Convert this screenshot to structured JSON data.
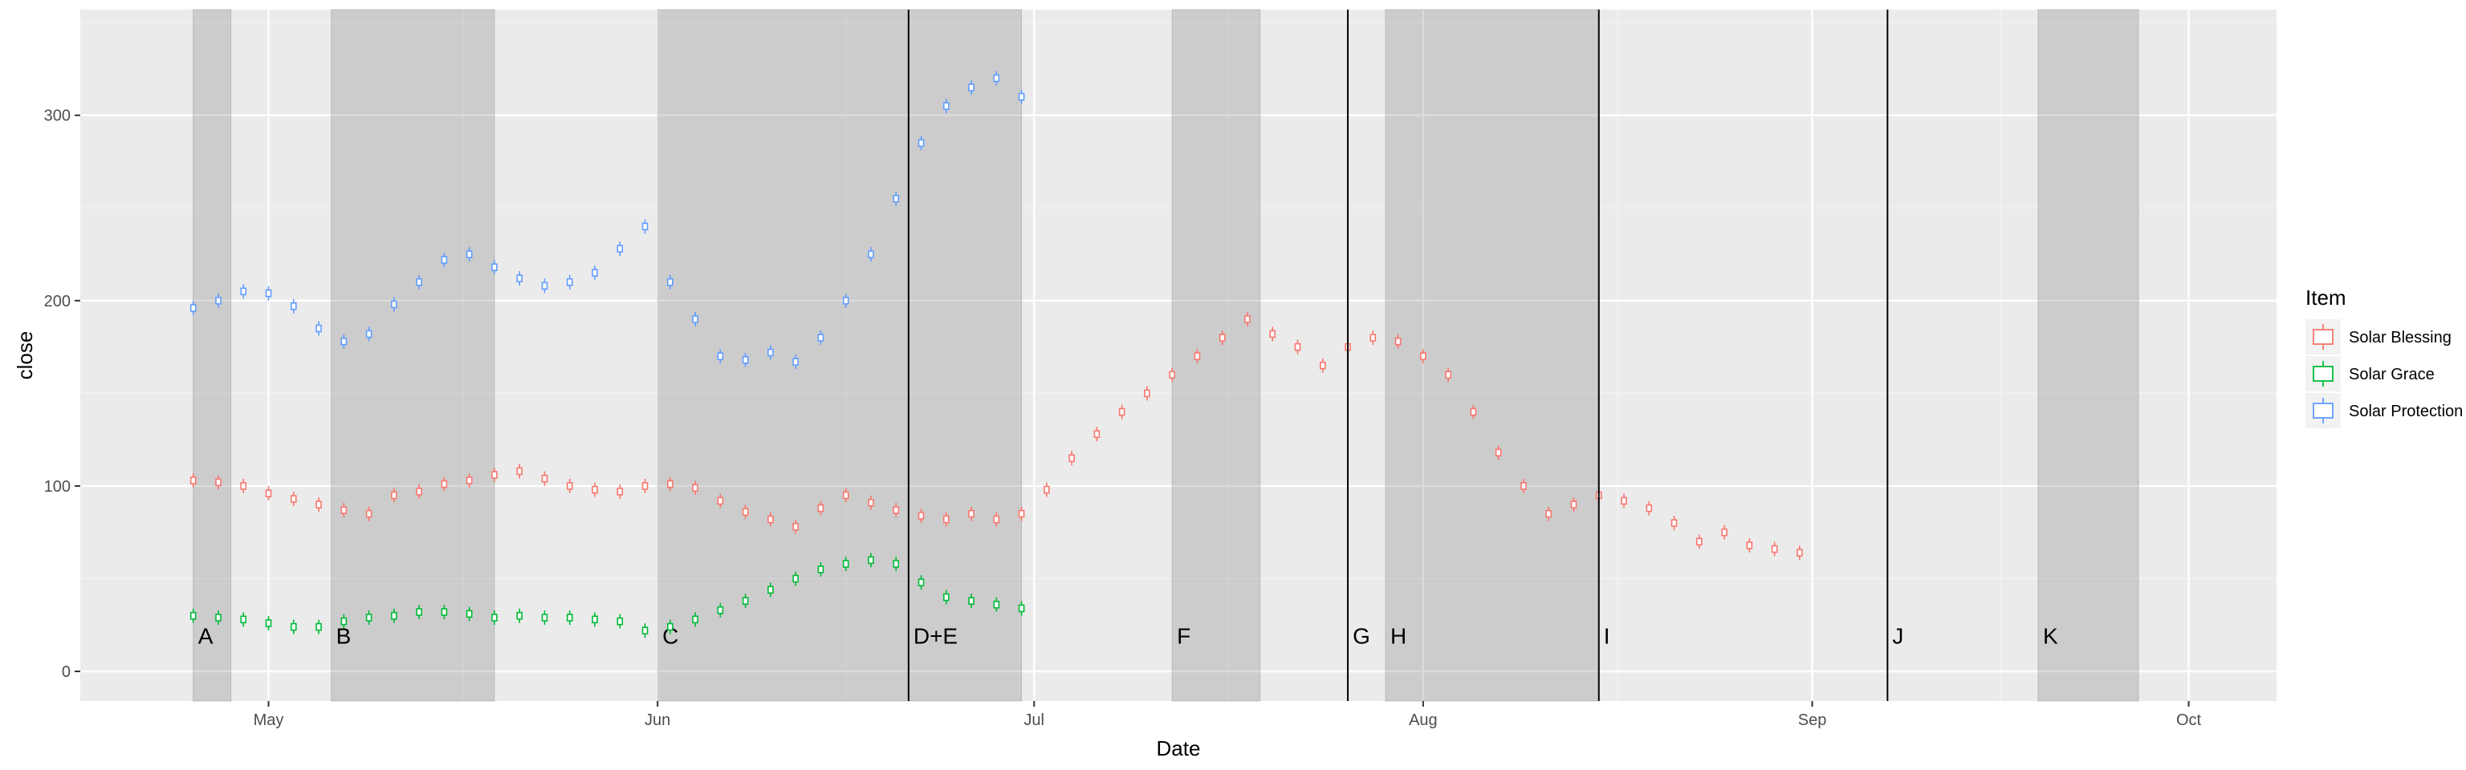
{
  "chart_data": {
    "type": "boxplot",
    "xlabel": "Date",
    "ylabel": "close",
    "x_type": "date",
    "xlim": [
      "2024-04-16",
      "2024-10-08"
    ],
    "ylim": [
      -16,
      357
    ],
    "x_ticks": [
      {
        "date": "2024-05-01",
        "label": "May"
      },
      {
        "date": "2024-06-01",
        "label": "Jun"
      },
      {
        "date": "2024-07-01",
        "label": "Jul"
      },
      {
        "date": "2024-08-01",
        "label": "Aug"
      },
      {
        "date": "2024-09-01",
        "label": "Sep"
      },
      {
        "date": "2024-10-01",
        "label": "Oct"
      }
    ],
    "y_ticks": [
      0,
      100,
      200,
      300
    ],
    "grid": true,
    "legend": {
      "title": "Item",
      "placement": "right",
      "entries": [
        "Solar Blessing",
        "Solar Grace",
        "Solar Protection"
      ]
    },
    "shaded_periods": [
      {
        "label": "A",
        "start": "2024-04-25",
        "end": "2024-04-28"
      },
      {
        "label": "B",
        "start": "2024-05-06",
        "end": "2024-05-19"
      },
      {
        "label": "C",
        "start": "2024-06-01",
        "end": "2024-06-30"
      },
      {
        "label": "F",
        "start": "2024-07-12",
        "end": "2024-07-19"
      },
      {
        "label": "H",
        "start": "2024-07-29",
        "end": "2024-08-15"
      },
      {
        "label": "K",
        "start": "2024-09-19",
        "end": "2024-09-27"
      }
    ],
    "event_lines": [
      {
        "label": "D+E",
        "date": "2024-06-21"
      },
      {
        "label": "G",
        "date": "2024-07-26"
      },
      {
        "label": "I",
        "date": "2024-08-15"
      },
      {
        "label": "J",
        "date": "2024-09-07"
      }
    ],
    "series": [
      {
        "name": "Solar Blessing",
        "color": "#F8766D",
        "points": [
          [
            "2024-04-25",
            103
          ],
          [
            "2024-04-27",
            102
          ],
          [
            "2024-04-29",
            100
          ],
          [
            "2024-05-01",
            96
          ],
          [
            "2024-05-03",
            93
          ],
          [
            "2024-05-05",
            90
          ],
          [
            "2024-05-07",
            87
          ],
          [
            "2024-05-09",
            85
          ],
          [
            "2024-05-11",
            95
          ],
          [
            "2024-05-13",
            97
          ],
          [
            "2024-05-15",
            101
          ],
          [
            "2024-05-17",
            103
          ],
          [
            "2024-05-19",
            106
          ],
          [
            "2024-05-21",
            108
          ],
          [
            "2024-05-23",
            104
          ],
          [
            "2024-05-25",
            100
          ],
          [
            "2024-05-27",
            98
          ],
          [
            "2024-05-29",
            97
          ],
          [
            "2024-05-31",
            100
          ],
          [
            "2024-06-02",
            101
          ],
          [
            "2024-06-04",
            99
          ],
          [
            "2024-06-06",
            92
          ],
          [
            "2024-06-08",
            86
          ],
          [
            "2024-06-10",
            82
          ],
          [
            "2024-06-12",
            78
          ],
          [
            "2024-06-14",
            88
          ],
          [
            "2024-06-16",
            95
          ],
          [
            "2024-06-18",
            91
          ],
          [
            "2024-06-20",
            87
          ],
          [
            "2024-06-22",
            84
          ],
          [
            "2024-06-24",
            82
          ],
          [
            "2024-06-26",
            85
          ],
          [
            "2024-06-28",
            82
          ],
          [
            "2024-06-30",
            85
          ],
          [
            "2024-07-02",
            98
          ],
          [
            "2024-07-04",
            115
          ],
          [
            "2024-07-06",
            128
          ],
          [
            "2024-07-08",
            140
          ],
          [
            "2024-07-10",
            150
          ],
          [
            "2024-07-12",
            160
          ],
          [
            "2024-07-14",
            170
          ],
          [
            "2024-07-16",
            180
          ],
          [
            "2024-07-18",
            190
          ],
          [
            "2024-07-20",
            182
          ],
          [
            "2024-07-22",
            175
          ],
          [
            "2024-07-24",
            165
          ],
          [
            "2024-07-26",
            175
          ],
          [
            "2024-07-28",
            180
          ],
          [
            "2024-07-30",
            178
          ],
          [
            "2024-08-01",
            170
          ],
          [
            "2024-08-03",
            160
          ],
          [
            "2024-08-05",
            140
          ],
          [
            "2024-08-07",
            118
          ],
          [
            "2024-08-09",
            100
          ],
          [
            "2024-08-11",
            85
          ],
          [
            "2024-08-13",
            90
          ],
          [
            "2024-08-15",
            95
          ],
          [
            "2024-08-17",
            92
          ],
          [
            "2024-08-19",
            88
          ],
          [
            "2024-08-21",
            80
          ],
          [
            "2024-08-23",
            70
          ],
          [
            "2024-08-25",
            75
          ],
          [
            "2024-08-27",
            68
          ],
          [
            "2024-08-29",
            66
          ],
          [
            "2024-08-31",
            64
          ]
        ]
      },
      {
        "name": "Solar Grace",
        "color": "#00BA38",
        "points": [
          [
            "2024-04-25",
            30
          ],
          [
            "2024-04-27",
            29
          ],
          [
            "2024-04-29",
            28
          ],
          [
            "2024-05-01",
            26
          ],
          [
            "2024-05-03",
            24
          ],
          [
            "2024-05-05",
            24
          ],
          [
            "2024-05-07",
            27
          ],
          [
            "2024-05-09",
            29
          ],
          [
            "2024-05-11",
            30
          ],
          [
            "2024-05-13",
            32
          ],
          [
            "2024-05-15",
            32
          ],
          [
            "2024-05-17",
            31
          ],
          [
            "2024-05-19",
            29
          ],
          [
            "2024-05-21",
            30
          ],
          [
            "2024-05-23",
            29
          ],
          [
            "2024-05-25",
            29
          ],
          [
            "2024-05-27",
            28
          ],
          [
            "2024-05-29",
            27
          ],
          [
            "2024-05-31",
            22
          ],
          [
            "2024-06-02",
            24
          ],
          [
            "2024-06-04",
            28
          ],
          [
            "2024-06-06",
            33
          ],
          [
            "2024-06-08",
            38
          ],
          [
            "2024-06-10",
            44
          ],
          [
            "2024-06-12",
            50
          ],
          [
            "2024-06-14",
            55
          ],
          [
            "2024-06-16",
            58
          ],
          [
            "2024-06-18",
            60
          ],
          [
            "2024-06-20",
            58
          ],
          [
            "2024-06-22",
            48
          ],
          [
            "2024-06-24",
            40
          ],
          [
            "2024-06-26",
            38
          ],
          [
            "2024-06-28",
            36
          ],
          [
            "2024-06-30",
            34
          ]
        ]
      },
      {
        "name": "Solar Protection",
        "color": "#619CFF",
        "points": [
          [
            "2024-04-25",
            196
          ],
          [
            "2024-04-27",
            200
          ],
          [
            "2024-04-29",
            205
          ],
          [
            "2024-05-01",
            204
          ],
          [
            "2024-05-03",
            197
          ],
          [
            "2024-05-05",
            185
          ],
          [
            "2024-05-07",
            178
          ],
          [
            "2024-05-09",
            182
          ],
          [
            "2024-05-11",
            198
          ],
          [
            "2024-05-13",
            210
          ],
          [
            "2024-05-15",
            222
          ],
          [
            "2024-05-17",
            225
          ],
          [
            "2024-05-19",
            218
          ],
          [
            "2024-05-21",
            212
          ],
          [
            "2024-05-23",
            208
          ],
          [
            "2024-05-25",
            210
          ],
          [
            "2024-05-27",
            215
          ],
          [
            "2024-05-29",
            228
          ],
          [
            "2024-05-31",
            240
          ],
          [
            "2024-06-02",
            210
          ],
          [
            "2024-06-04",
            190
          ],
          [
            "2024-06-06",
            170
          ],
          [
            "2024-06-08",
            168
          ],
          [
            "2024-06-10",
            172
          ],
          [
            "2024-06-12",
            167
          ],
          [
            "2024-06-14",
            180
          ],
          [
            "2024-06-16",
            200
          ],
          [
            "2024-06-18",
            225
          ],
          [
            "2024-06-20",
            255
          ],
          [
            "2024-06-22",
            285
          ],
          [
            "2024-06-24",
            305
          ],
          [
            "2024-06-26",
            315
          ],
          [
            "2024-06-28",
            320
          ],
          [
            "2024-06-30",
            310
          ]
        ]
      }
    ]
  }
}
